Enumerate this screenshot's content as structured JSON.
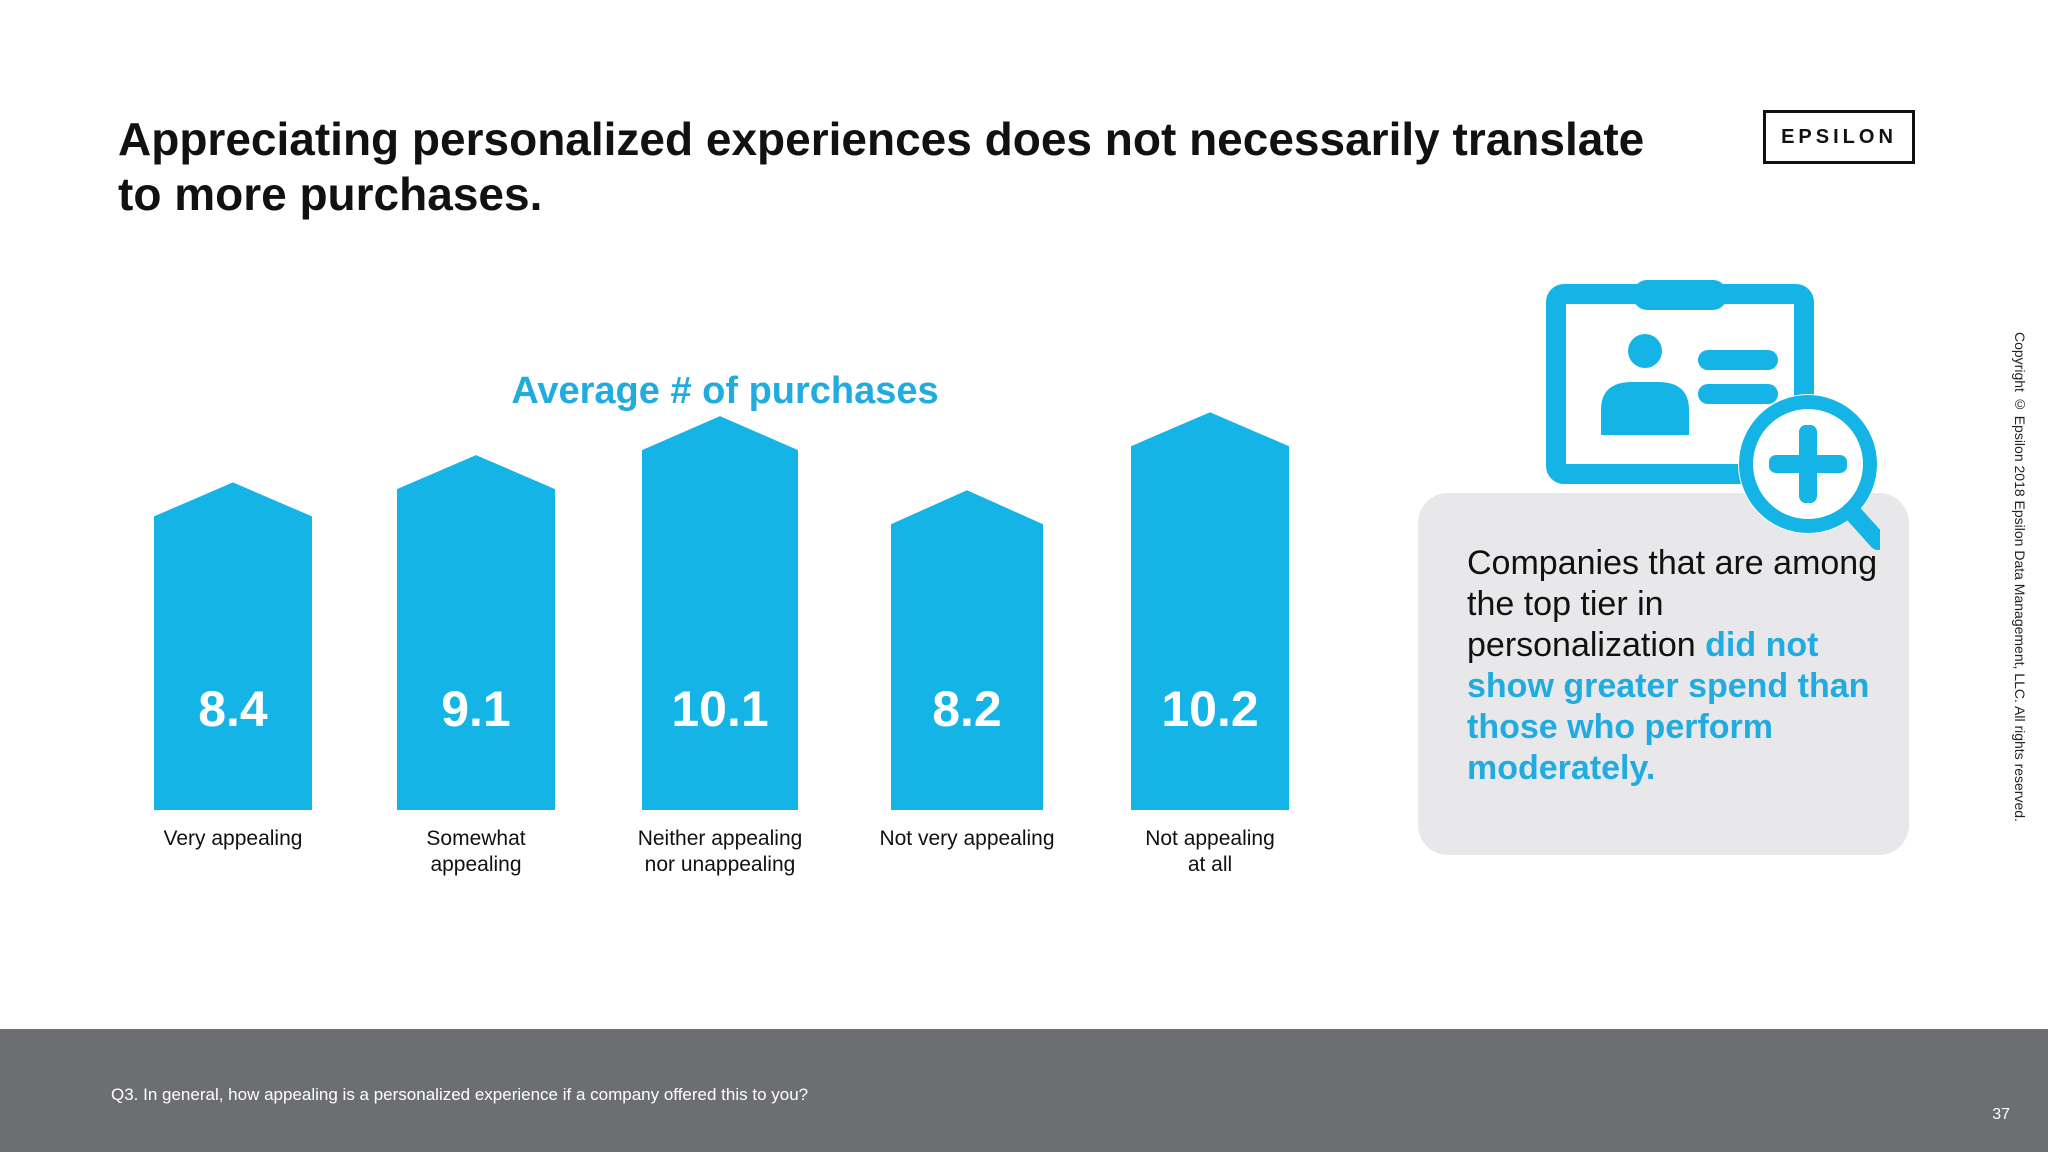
{
  "slide": {
    "title": "Appreciating personalized experiences does not necessarily translate to more purchases.",
    "logo_text": "EPSILON",
    "copyright": "Copyright © Epsilon 2018 Epsilon Data Management, LLC. All rights reserved.",
    "footnote": "Q3. In general, how appealing is a personalized experience if a company offered this to you?",
    "page_number": "37"
  },
  "callout": {
    "text_plain": "Companies that are among the top tier in personalization ",
    "text_highlight": "did not show greater spend than those who perform moderately.",
    "icon": "id-card-magnifier-plus-icon"
  },
  "colors": {
    "accent": "#20ABE1",
    "bar": "#15B4E6",
    "footer": "#6d6e71",
    "callout_bg": "#e8e8ea"
  },
  "chart_data": {
    "type": "bar",
    "title": "Average # of purchases",
    "categories": [
      "Very appealing",
      "Somewhat appealing",
      "Neither appealing nor unappealing",
      "Not very appealing",
      "Not appealing at all"
    ],
    "category_lines": [
      [
        "Very appealing"
      ],
      [
        "Somewhat",
        "appealing"
      ],
      [
        "Neither appealing",
        "nor unappealing"
      ],
      [
        "Not very appealing"
      ],
      [
        "Not appealing",
        "at all"
      ]
    ],
    "values": [
      8.4,
      9.1,
      10.1,
      8.2,
      10.2
    ],
    "value_labels": [
      "8.4",
      "9.1",
      "10.1",
      "8.2",
      "10.2"
    ],
    "bar_shape": "house",
    "grid": false,
    "legend": "none"
  }
}
